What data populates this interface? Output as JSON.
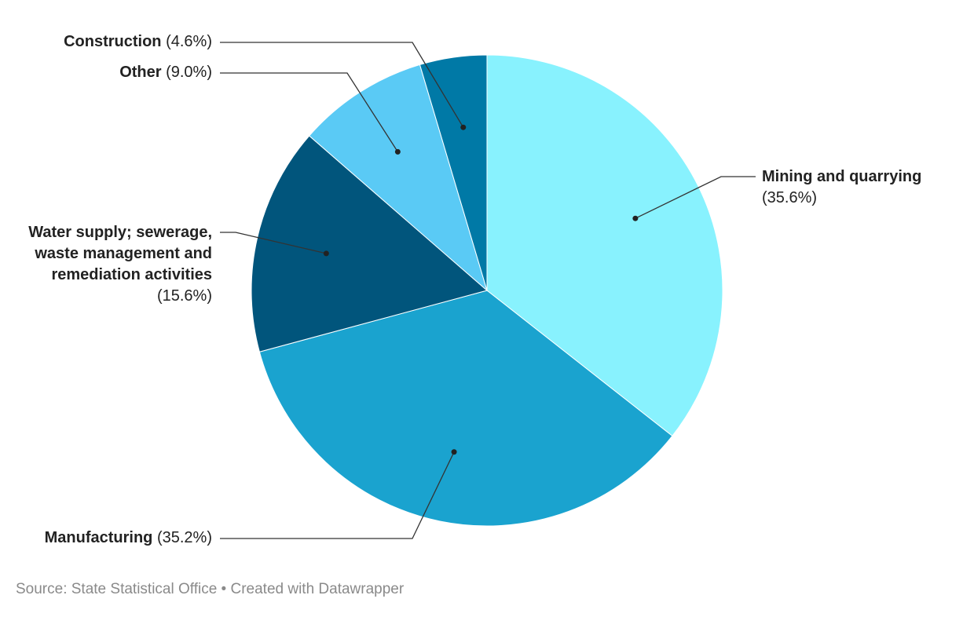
{
  "chart_data": {
    "type": "pie",
    "categories": [
      "Mining and quarrying",
      "Manufacturing",
      "Water supply; sewerage, waste management and remediation activities",
      "Other",
      "Construction"
    ],
    "values": [
      35.6,
      35.2,
      15.6,
      9.0,
      4.6
    ],
    "value_labels": [
      "(35.6%)",
      "(35.2%)",
      "(15.6%)",
      "(9.0%)",
      "(4.6%)"
    ],
    "colors": [
      "#88f2fe",
      "#1aa3cf",
      "#01557c",
      "#5acaf5",
      "#0079a6"
    ],
    "source": "Source: State Statistical Office • Created with Datawrapper"
  }
}
